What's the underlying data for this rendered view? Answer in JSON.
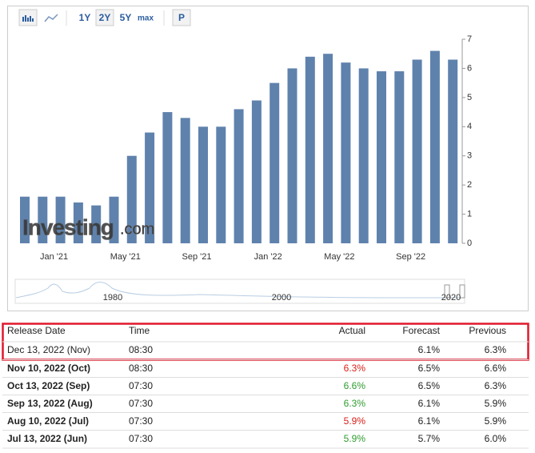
{
  "toolbar": {
    "ranges": [
      "1Y",
      "2Y",
      "5Y",
      "max"
    ],
    "selected": "2Y",
    "extra": "P"
  },
  "chart_data": {
    "type": "bar",
    "categories": [
      null,
      null,
      "Jan '21",
      null,
      null,
      null,
      "May '21",
      null,
      null,
      null,
      "Sep '21",
      null,
      null,
      null,
      "Jan '22",
      null,
      null,
      null,
      "May '22",
      null,
      null,
      null,
      "Sep '22",
      null,
      null
    ],
    "values": [
      1.6,
      1.6,
      1.6,
      1.4,
      1.3,
      1.6,
      3.0,
      3.8,
      4.5,
      4.3,
      4.0,
      4.0,
      4.6,
      4.9,
      5.5,
      6.0,
      6.4,
      6.5,
      6.2,
      6.0,
      5.9,
      5.9,
      6.3,
      6.6,
      6.3
    ],
    "color": "#5f82ad",
    "ylim": [
      0,
      7
    ],
    "yticks": [
      0,
      1,
      2,
      3,
      4,
      5,
      6,
      7
    ]
  },
  "watermark": [
    "Investing",
    ".com"
  ],
  "navigator": {
    "labels": [
      "1980",
      "2000",
      "2020"
    ]
  },
  "table": {
    "header": [
      "Release Date",
      "Time",
      "Actual",
      "Forecast",
      "Previous"
    ],
    "rows": [
      {
        "date": "Dec 13, 2022 (Nov)",
        "time": "08:30",
        "actual": null,
        "forecast": "6.1%",
        "previous": "6.3%"
      },
      {
        "date": "Nov 10, 2022 (Oct)",
        "time": "08:30",
        "actual": "6.3%",
        "actual_color": "#d91e18",
        "forecast": "6.5%",
        "previous": "6.6%"
      },
      {
        "date": "Oct 13, 2022 (Sep)",
        "time": "07:30",
        "actual": "6.6%",
        "actual_color": "#2e9c2e",
        "forecast": "6.5%",
        "previous": "6.3%"
      },
      {
        "date": "Sep 13, 2022 (Aug)",
        "time": "07:30",
        "actual": "6.3%",
        "actual_color": "#2e9c2e",
        "forecast": "6.1%",
        "previous": "5.9%"
      },
      {
        "date": "Aug 10, 2022 (Jul)",
        "time": "07:30",
        "actual": "5.9%",
        "actual_color": "#d91e18",
        "forecast": "6.1%",
        "previous": "5.9%"
      },
      {
        "date": "Jul 13, 2022 (Jun)",
        "time": "07:30",
        "actual": "5.9%",
        "actual_color": "#2e9c2e",
        "forecast": "5.7%",
        "previous": "6.0%"
      }
    ]
  }
}
